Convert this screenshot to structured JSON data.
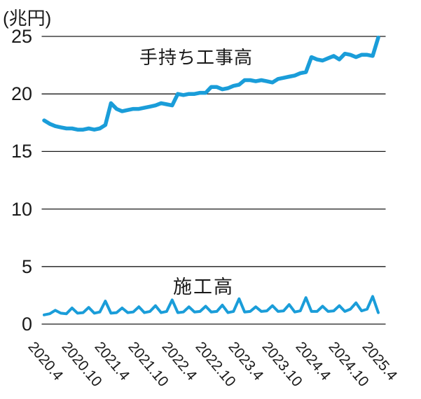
{
  "unit_label": "(兆円)",
  "colors": {
    "line": "#1a9dd9",
    "grid": "#1a1a1a",
    "text": "#1a1a1a",
    "background": "#ffffff"
  },
  "chart_data": {
    "type": "line",
    "unit": "(兆円)",
    "ylabel": "(兆円)",
    "xlabel": "",
    "ylim": [
      0,
      25
    ],
    "y_ticks": [
      0,
      5,
      10,
      15,
      20,
      25
    ],
    "grid": "horizontal",
    "legend_position": "inline-labels",
    "x_tick_labels": [
      "2020.4",
      "2020.10",
      "2021.4",
      "2021.10",
      "2022.4",
      "2022.10",
      "2023.4",
      "2023.10",
      "2024.4",
      "2024.10",
      "2025.4"
    ],
    "months": [
      "2020.4",
      "2020.5",
      "2020.6",
      "2020.7",
      "2020.8",
      "2020.9",
      "2020.10",
      "2020.11",
      "2020.12",
      "2021.1",
      "2021.2",
      "2021.3",
      "2021.4",
      "2021.5",
      "2021.6",
      "2021.7",
      "2021.8",
      "2021.9",
      "2021.10",
      "2021.11",
      "2021.12",
      "2022.1",
      "2022.2",
      "2022.3",
      "2022.4",
      "2022.5",
      "2022.6",
      "2022.7",
      "2022.8",
      "2022.9",
      "2022.10",
      "2022.11",
      "2022.12",
      "2023.1",
      "2023.2",
      "2023.3",
      "2023.4",
      "2023.5",
      "2023.6",
      "2023.7",
      "2023.8",
      "2023.9",
      "2023.10",
      "2023.11",
      "2023.12",
      "2024.1",
      "2024.2",
      "2024.3",
      "2024.4",
      "2024.5",
      "2024.6",
      "2024.7",
      "2024.8",
      "2024.9",
      "2024.10",
      "2024.11",
      "2024.12",
      "2025.1",
      "2025.2",
      "2025.3",
      "2025.4"
    ],
    "series": [
      {
        "name": "手持ち工事高",
        "values": [
          17.7,
          17.4,
          17.2,
          17.1,
          17.0,
          17.0,
          16.9,
          16.9,
          17.0,
          16.9,
          17.0,
          17.3,
          19.2,
          18.7,
          18.5,
          18.6,
          18.7,
          18.7,
          18.8,
          18.9,
          19.0,
          19.2,
          19.1,
          19.0,
          20.0,
          19.9,
          20.0,
          20.0,
          20.1,
          20.1,
          20.6,
          20.6,
          20.4,
          20.5,
          20.7,
          20.8,
          21.2,
          21.2,
          21.1,
          21.2,
          21.1,
          21.0,
          21.3,
          21.4,
          21.5,
          21.6,
          21.8,
          21.9,
          23.2,
          23.0,
          22.9,
          23.1,
          23.3,
          23.0,
          23.5,
          23.4,
          23.2,
          23.4,
          23.4,
          23.3,
          24.9
        ]
      },
      {
        "name": "施工高",
        "values": [
          0.8,
          0.9,
          1.2,
          0.95,
          0.9,
          1.4,
          0.95,
          1.0,
          1.45,
          0.95,
          1.05,
          2.0,
          0.95,
          1.0,
          1.4,
          1.0,
          1.05,
          1.5,
          1.0,
          1.1,
          1.6,
          1.0,
          1.1,
          2.1,
          1.0,
          1.05,
          1.5,
          1.05,
          1.1,
          1.55,
          1.05,
          1.1,
          1.65,
          1.0,
          1.1,
          2.2,
          1.05,
          1.1,
          1.5,
          1.1,
          1.15,
          1.6,
          1.1,
          1.15,
          1.7,
          1.05,
          1.15,
          2.3,
          1.1,
          1.1,
          1.55,
          1.1,
          1.15,
          1.6,
          1.1,
          1.3,
          1.85,
          1.15,
          1.3,
          2.4,
          1.0
        ]
      }
    ]
  }
}
